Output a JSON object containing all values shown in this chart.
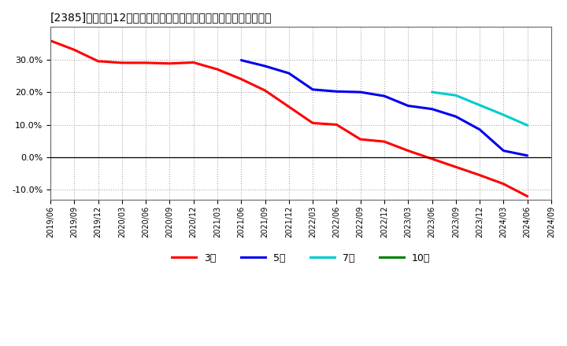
{
  "title": "[2385]　売上高12か月移動合計の対前年同期増減率の平均値の推移",
  "ylim": [
    -0.13,
    0.4
  ],
  "yticks": [
    -0.1,
    0.0,
    0.1,
    0.2,
    0.3
  ],
  "background_color": "#ffffff",
  "plot_bg_color": "#ffffff",
  "grid_color": "#aaaaaa",
  "series": {
    "3year": {
      "color": "#ff0000",
      "points": [
        [
          "2019/06",
          0.358
        ],
        [
          "2019/09",
          0.33
        ],
        [
          "2019/12",
          0.295
        ],
        [
          "2020/03",
          0.29
        ],
        [
          "2020/06",
          0.29
        ],
        [
          "2020/09",
          0.288
        ],
        [
          "2020/12",
          0.291
        ],
        [
          "2021/03",
          0.27
        ],
        [
          "2021/06",
          0.24
        ],
        [
          "2021/09",
          0.205
        ],
        [
          "2021/12",
          0.155
        ],
        [
          "2022/03",
          0.105
        ],
        [
          "2022/06",
          0.1
        ],
        [
          "2022/09",
          0.055
        ],
        [
          "2022/12",
          0.048
        ],
        [
          "2023/03",
          0.02
        ],
        [
          "2023/06",
          -0.005
        ],
        [
          "2023/09",
          -0.03
        ],
        [
          "2023/12",
          -0.055
        ],
        [
          "2024/03",
          -0.082
        ],
        [
          "2024/06",
          -0.12
        ]
      ],
      "label": "3年"
    },
    "5year": {
      "color": "#0000ee",
      "points": [
        [
          "2021/06",
          0.298
        ],
        [
          "2021/09",
          0.28
        ],
        [
          "2021/12",
          0.258
        ],
        [
          "2022/03",
          0.208
        ],
        [
          "2022/06",
          0.202
        ],
        [
          "2022/09",
          0.2
        ],
        [
          "2022/12",
          0.188
        ],
        [
          "2023/03",
          0.158
        ],
        [
          "2023/06",
          0.148
        ],
        [
          "2023/09",
          0.125
        ],
        [
          "2023/12",
          0.085
        ],
        [
          "2024/03",
          0.02
        ],
        [
          "2024/06",
          0.005
        ]
      ],
      "label": "5年"
    },
    "7year": {
      "color": "#00cccc",
      "points": [
        [
          "2023/06",
          0.2
        ],
        [
          "2023/09",
          0.19
        ],
        [
          "2023/12",
          0.16
        ],
        [
          "2024/03",
          0.13
        ],
        [
          "2024/06",
          0.098
        ]
      ],
      "label": "7年"
    },
    "10year": {
      "color": "#008000",
      "points": [],
      "label": "10年"
    }
  },
  "xtick_labels": [
    "2019/06",
    "2019/09",
    "2019/12",
    "2020/03",
    "2020/06",
    "2020/09",
    "2020/12",
    "2021/03",
    "2021/06",
    "2021/09",
    "2021/12",
    "2022/03",
    "2022/06",
    "2022/09",
    "2022/12",
    "2023/03",
    "2023/06",
    "2023/09",
    "2023/12",
    "2024/03",
    "2024/06",
    "2024/09"
  ]
}
